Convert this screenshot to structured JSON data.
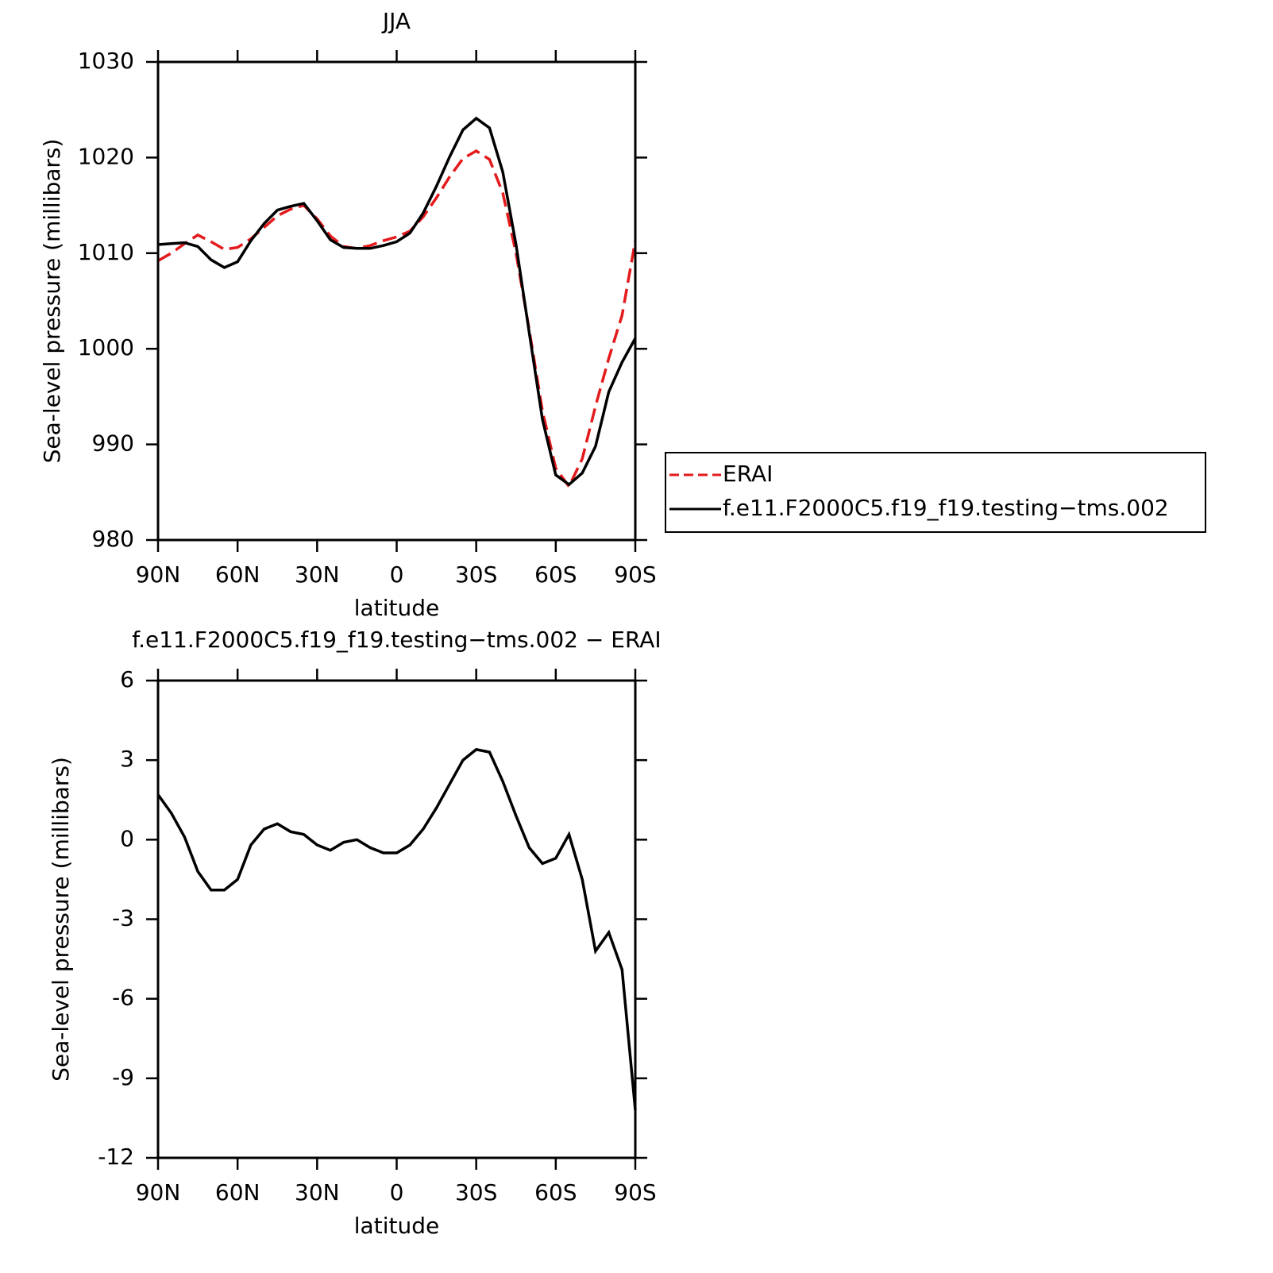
{
  "chart_data": [
    {
      "type": "line",
      "title": "JJA",
      "xlabel": "latitude",
      "ylabel": "Sea-level pressure (millibars)",
      "x": [
        90,
        85,
        80,
        75,
        70,
        65,
        60,
        55,
        50,
        45,
        40,
        35,
        30,
        25,
        20,
        15,
        10,
        5,
        0,
        -5,
        -10,
        -15,
        -20,
        -25,
        -30,
        -35,
        -40,
        -45,
        -50,
        -55,
        -60,
        -65,
        -70,
        -75,
        -80,
        -85,
        -90
      ],
      "series": [
        {
          "name": "ERAI",
          "color": "#e41a1c",
          "linestyle": "dashed",
          "values": [
            1009.2,
            1010.0,
            1011.0,
            1011.9,
            1011.2,
            1010.4,
            1010.6,
            1011.5,
            1012.7,
            1013.9,
            1014.6,
            1015.0,
            1013.6,
            1011.8,
            1010.7,
            1010.5,
            1010.8,
            1011.3,
            1011.7,
            1012.3,
            1013.8,
            1015.8,
            1018.0,
            1019.9,
            1020.7,
            1019.8,
            1016.3,
            1010.0,
            1002.0,
            993.5,
            987.5,
            985.6,
            988.5,
            994.0,
            999.0,
            1003.5,
            1011.3
          ]
        },
        {
          "name": "f.e11.F2000C5.f19_f19.testing−tms.002",
          "color": "#000000",
          "linestyle": "solid",
          "values": [
            1010.9,
            1011.0,
            1011.1,
            1010.7,
            1009.3,
            1008.5,
            1009.1,
            1011.3,
            1013.1,
            1014.5,
            1014.9,
            1015.2,
            1013.4,
            1011.4,
            1010.6,
            1010.5,
            1010.5,
            1010.8,
            1011.2,
            1012.1,
            1014.2,
            1017.0,
            1020.1,
            1022.9,
            1024.1,
            1023.1,
            1018.5,
            1010.9,
            1001.7,
            992.6,
            986.8,
            985.8,
            987.0,
            989.8,
            995.5,
            998.6,
            1001.1
          ]
        }
      ],
      "xlim": [
        90,
        -90
      ],
      "xticks": [
        {
          "value": 90,
          "label": "90N"
        },
        {
          "value": 60,
          "label": "60N"
        },
        {
          "value": 30,
          "label": "30N"
        },
        0,
        {
          "value": -30,
          "label": "30S"
        },
        {
          "value": -60,
          "label": "60S"
        },
        {
          "value": -90,
          "label": "90S"
        }
      ],
      "ylim": [
        980,
        1030
      ],
      "yticks": [
        980,
        990,
        1000,
        1010,
        1020,
        1030
      ],
      "legend": "outside right"
    },
    {
      "type": "line",
      "title": "f.e11.F2000C5.f19_f19.testing−tms.002 − ERAI",
      "xlabel": "latitude",
      "ylabel": "Sea-level pressure (millibars)",
      "x": [
        90,
        85,
        80,
        75,
        70,
        65,
        60,
        55,
        50,
        45,
        40,
        35,
        30,
        25,
        20,
        15,
        10,
        5,
        0,
        -5,
        -10,
        -15,
        -20,
        -25,
        -30,
        -35,
        -40,
        -45,
        -50,
        -55,
        -60,
        -65,
        -70,
        -75,
        -80,
        -85,
        -90
      ],
      "color": "#000000",
      "values": [
        1.7,
        1.0,
        0.1,
        -1.2,
        -1.9,
        -1.9,
        -1.5,
        -0.2,
        0.4,
        0.6,
        0.3,
        0.2,
        -0.2,
        -0.4,
        -0.1,
        0.0,
        -0.3,
        -0.5,
        -0.5,
        -0.2,
        0.4,
        1.2,
        2.1,
        3.0,
        3.4,
        3.3,
        2.2,
        0.9,
        -0.3,
        -0.9,
        -0.7,
        0.2,
        -1.5,
        -4.2,
        -3.5,
        -4.9,
        -10.2
      ],
      "xlim": [
        90,
        -90
      ],
      "xticks": [
        {
          "value": 90,
          "label": "90N"
        },
        {
          "value": 60,
          "label": "60N"
        },
        {
          "value": 30,
          "label": "30N"
        },
        0,
        {
          "value": -30,
          "label": "30S"
        },
        {
          "value": -60,
          "label": "60S"
        },
        {
          "value": -90,
          "label": "90S"
        }
      ],
      "ylim": [
        -12,
        6
      ],
      "yticks": [
        -12,
        -9,
        -6,
        -3,
        0,
        3,
        6
      ]
    }
  ]
}
